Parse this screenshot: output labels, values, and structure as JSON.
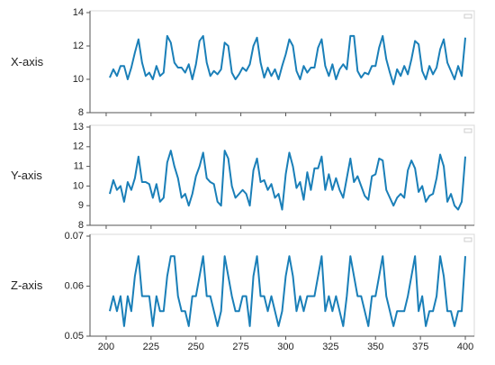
{
  "chart_data": [
    {
      "type": "line",
      "ylabel": "X-axis",
      "color": "#1a7fb8",
      "xlim": [
        191,
        405
      ],
      "ylim": [
        8,
        14
      ],
      "yticks": [
        8,
        10,
        12,
        14
      ],
      "xticks": [
        200,
        225,
        250,
        275,
        300,
        325,
        350,
        375,
        400
      ],
      "x": [
        202,
        204,
        206,
        208,
        210,
        212,
        214,
        216,
        218,
        220,
        222,
        224,
        226,
        228,
        230,
        232,
        234,
        236,
        238,
        240,
        242,
        244,
        246,
        248,
        250,
        252,
        254,
        256,
        258,
        260,
        262,
        264,
        266,
        268,
        270,
        272,
        274,
        276,
        278,
        280,
        282,
        284,
        286,
        288,
        290,
        292,
        294,
        296,
        298,
        300,
        302,
        304,
        306,
        308,
        310,
        312,
        314,
        316,
        318,
        320,
        322,
        324,
        326,
        328,
        330,
        332,
        334,
        336,
        338,
        340,
        342,
        344,
        346,
        348,
        350,
        352,
        354,
        356,
        358,
        360,
        362,
        364,
        366,
        368,
        370,
        372,
        374,
        376,
        378,
        380,
        382,
        384,
        386,
        388,
        390,
        392,
        394,
        396,
        398,
        400
      ],
      "values": [
        10.1,
        10.6,
        10.2,
        10.8,
        10.8,
        10.0,
        10.7,
        11.6,
        12.4,
        11.0,
        10.2,
        10.4,
        10.0,
        10.8,
        10.2,
        10.4,
        12.6,
        12.2,
        11.0,
        10.7,
        10.7,
        10.4,
        10.9,
        10.0,
        10.9,
        12.3,
        12.6,
        11.0,
        10.2,
        10.5,
        10.3,
        10.6,
        12.2,
        12.0,
        10.4,
        10.0,
        10.3,
        10.7,
        10.5,
        10.9,
        12.0,
        12.5,
        11.0,
        10.1,
        10.7,
        10.2,
        10.6,
        10.0,
        10.8,
        11.5,
        12.4,
        12.0,
        10.5,
        10.0,
        10.8,
        10.4,
        10.7,
        10.7,
        11.9,
        12.4,
        10.8,
        10.2,
        10.9,
        10.0,
        10.6,
        10.9,
        10.6,
        12.6,
        12.6,
        10.5,
        10.1,
        10.4,
        10.3,
        10.8,
        10.8,
        11.9,
        12.6,
        11.2,
        10.4,
        9.7,
        10.6,
        10.2,
        10.8,
        10.3,
        11.2,
        12.3,
        12.1,
        10.5,
        10.0,
        10.8,
        10.3,
        10.7,
        11.8,
        12.4,
        11.0,
        10.5,
        10.0,
        10.8,
        10.2,
        12.5
      ]
    },
    {
      "type": "line",
      "ylabel": "Y-axis",
      "color": "#1a7fb8",
      "xlim": [
        191,
        405
      ],
      "ylim": [
        8,
        13
      ],
      "yticks": [
        8,
        9,
        10,
        11,
        12,
        13
      ],
      "xticks": [
        200,
        225,
        250,
        275,
        300,
        325,
        350,
        375,
        400
      ],
      "x": [
        202,
        204,
        206,
        208,
        210,
        212,
        214,
        216,
        218,
        220,
        222,
        224,
        226,
        228,
        230,
        232,
        234,
        236,
        238,
        240,
        242,
        244,
        246,
        248,
        250,
        252,
        254,
        256,
        258,
        260,
        262,
        264,
        266,
        268,
        270,
        272,
        274,
        276,
        278,
        280,
        282,
        284,
        286,
        288,
        290,
        292,
        294,
        296,
        298,
        300,
        302,
        304,
        306,
        308,
        310,
        312,
        314,
        316,
        318,
        320,
        322,
        324,
        326,
        328,
        330,
        332,
        334,
        336,
        338,
        340,
        342,
        344,
        346,
        348,
        350,
        352,
        354,
        356,
        358,
        360,
        362,
        364,
        366,
        368,
        370,
        372,
        374,
        376,
        378,
        380,
        382,
        384,
        386,
        388,
        390,
        392,
        394,
        396,
        398,
        400
      ],
      "values": [
        9.6,
        10.3,
        9.8,
        10.0,
        9.2,
        10.2,
        9.8,
        10.4,
        11.5,
        10.2,
        10.2,
        10.1,
        9.4,
        10.1,
        9.2,
        9.4,
        11.2,
        11.8,
        11.0,
        10.4,
        9.4,
        9.6,
        9.0,
        9.6,
        10.5,
        11.0,
        11.7,
        10.4,
        10.2,
        10.1,
        9.2,
        9.0,
        11.8,
        11.4,
        10.0,
        9.4,
        9.6,
        9.8,
        9.6,
        9.0,
        10.8,
        11.4,
        10.2,
        10.3,
        9.8,
        10.1,
        9.4,
        9.6,
        8.8,
        10.6,
        11.7,
        11.0,
        9.9,
        10.2,
        9.3,
        10.7,
        9.8,
        10.9,
        10.9,
        11.5,
        9.8,
        10.6,
        9.8,
        10.4,
        9.8,
        9.4,
        10.4,
        11.4,
        10.2,
        10.5,
        10.0,
        9.5,
        9.3,
        10.5,
        10.6,
        11.4,
        11.3,
        9.8,
        9.4,
        9.0,
        9.4,
        9.6,
        9.4,
        10.8,
        11.3,
        10.9,
        9.7,
        10.0,
        9.2,
        9.5,
        9.6,
        10.4,
        11.6,
        11.0,
        9.2,
        9.6,
        9.0,
        8.8,
        9.2,
        11.5
      ]
    },
    {
      "type": "line",
      "ylabel": "Z-axis",
      "color": "#1a7fb8",
      "xlim": [
        191,
        405
      ],
      "ylim": [
        0.05,
        0.07
      ],
      "yticks": [
        0.05,
        0.06,
        0.07
      ],
      "xticks": [
        200,
        225,
        250,
        275,
        300,
        325,
        350,
        375,
        400
      ],
      "x": [
        202,
        204,
        206,
        208,
        210,
        212,
        214,
        216,
        218,
        220,
        222,
        224,
        226,
        228,
        230,
        232,
        234,
        236,
        238,
        240,
        242,
        244,
        246,
        248,
        250,
        252,
        254,
        256,
        258,
        260,
        262,
        264,
        266,
        268,
        270,
        272,
        274,
        276,
        278,
        280,
        282,
        284,
        286,
        288,
        290,
        292,
        294,
        296,
        298,
        300,
        302,
        304,
        306,
        308,
        310,
        312,
        314,
        316,
        318,
        320,
        322,
        324,
        326,
        328,
        330,
        332,
        334,
        336,
        338,
        340,
        342,
        344,
        346,
        348,
        350,
        352,
        354,
        356,
        358,
        360,
        362,
        364,
        366,
        368,
        370,
        372,
        374,
        376,
        378,
        380,
        382,
        384,
        386,
        388,
        390,
        392,
        394,
        396,
        398,
        400
      ],
      "values": [
        0.055,
        0.058,
        0.055,
        0.058,
        0.052,
        0.058,
        0.055,
        0.062,
        0.066,
        0.058,
        0.058,
        0.058,
        0.052,
        0.058,
        0.055,
        0.055,
        0.062,
        0.066,
        0.066,
        0.058,
        0.055,
        0.055,
        0.052,
        0.058,
        0.058,
        0.062,
        0.066,
        0.058,
        0.058,
        0.055,
        0.052,
        0.055,
        0.066,
        0.062,
        0.058,
        0.055,
        0.055,
        0.058,
        0.058,
        0.052,
        0.062,
        0.066,
        0.058,
        0.058,
        0.055,
        0.058,
        0.055,
        0.052,
        0.055,
        0.062,
        0.066,
        0.062,
        0.055,
        0.058,
        0.055,
        0.058,
        0.058,
        0.058,
        0.062,
        0.066,
        0.055,
        0.058,
        0.055,
        0.058,
        0.055,
        0.052,
        0.058,
        0.066,
        0.062,
        0.058,
        0.058,
        0.055,
        0.052,
        0.058,
        0.058,
        0.062,
        0.066,
        0.058,
        0.055,
        0.052,
        0.055,
        0.055,
        0.055,
        0.058,
        0.062,
        0.066,
        0.055,
        0.058,
        0.052,
        0.055,
        0.055,
        0.058,
        0.066,
        0.062,
        0.055,
        0.055,
        0.052,
        0.055,
        0.055,
        0.066
      ]
    }
  ]
}
